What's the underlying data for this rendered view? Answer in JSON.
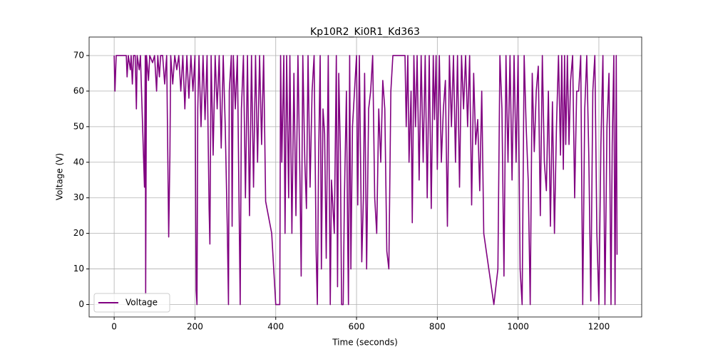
{
  "chart_data": {
    "type": "line",
    "title": "Kp10R2_Ki0R1_Kd363",
    "xlabel": "Time (seconds)",
    "ylabel": "Voltage (V)",
    "x": [
      0,
      2,
      5,
      30,
      32,
      35,
      40,
      42,
      45,
      48,
      52,
      55,
      57,
      62,
      65,
      75,
      77,
      78,
      80,
      85,
      88,
      95,
      100,
      105,
      108,
      112,
      115,
      120,
      125,
      130,
      135,
      138,
      140,
      145,
      150,
      155,
      160,
      165,
      170,
      175,
      180,
      185,
      190,
      195,
      200,
      203,
      205,
      207,
      210,
      215,
      220,
      225,
      230,
      235,
      237,
      240,
      245,
      250,
      255,
      260,
      265,
      270,
      275,
      280,
      283,
      285,
      290,
      292,
      295,
      300,
      305,
      310,
      312,
      315,
      320,
      325,
      330,
      335,
      340,
      345,
      350,
      355,
      360,
      365,
      370,
      375,
      390,
      400,
      410,
      412,
      415,
      420,
      423,
      427,
      432,
      435,
      440,
      445,
      450,
      455,
      460,
      463,
      467,
      472,
      476,
      480,
      485,
      490,
      495,
      500,
      503,
      506,
      510,
      513,
      517,
      521,
      525,
      530,
      535,
      538,
      545,
      550,
      553,
      556,
      560,
      563,
      567,
      570,
      575,
      578,
      580,
      583,
      586,
      590,
      595,
      600,
      603,
      607,
      613,
      617,
      620,
      625,
      630,
      635,
      640,
      645,
      650,
      655,
      660,
      665,
      670,
      675,
      680,
      685,
      690,
      720,
      723,
      727,
      730,
      735,
      738,
      742,
      746,
      750,
      755,
      760,
      765,
      770,
      775,
      780,
      785,
      790,
      793,
      797,
      800,
      805,
      810,
      815,
      820,
      825,
      830,
      835,
      840,
      845,
      850,
      855,
      860,
      865,
      870,
      875,
      880,
      885,
      890,
      895,
      900,
      905,
      910,
      915,
      940,
      950,
      955,
      960,
      965,
      970,
      975,
      980,
      985,
      990,
      995,
      1000,
      1005,
      1010,
      1015,
      1020,
      1025,
      1030,
      1035,
      1040,
      1045,
      1050,
      1055,
      1060,
      1065,
      1070,
      1075,
      1080,
      1085,
      1090,
      1095,
      1100,
      1105,
      1108,
      1112,
      1115,
      1118,
      1122,
      1126,
      1130,
      1135,
      1140,
      1145,
      1150,
      1155,
      1160,
      1165,
      1170,
      1175,
      1180,
      1185,
      1190,
      1195,
      1200,
      1205,
      1210,
      1215,
      1220,
      1225,
      1230,
      1233,
      1237,
      1240,
      1243,
      1245
    ],
    "series": [
      {
        "name": "Voltage",
        "color": "#800080",
        "values": [
          70,
          60,
          70,
          70,
          64,
          70,
          66,
          70,
          62,
          70,
          70,
          55,
          70,
          66,
          70,
          33,
          70,
          3,
          70,
          63,
          70,
          68,
          70,
          60,
          70,
          64,
          70,
          70,
          62,
          70,
          19,
          42,
          70,
          62,
          70,
          66,
          70,
          60,
          70,
          55,
          70,
          58,
          70,
          60,
          70,
          4,
          0,
          55,
          70,
          50,
          70,
          52,
          70,
          27,
          17,
          70,
          42,
          70,
          55,
          70,
          44,
          70,
          50,
          22,
          0,
          60,
          70,
          22,
          70,
          55,
          70,
          20,
          0,
          55,
          70,
          30,
          70,
          25,
          70,
          33,
          70,
          40,
          70,
          45,
          70,
          29,
          20,
          0,
          0,
          70,
          40,
          70,
          20,
          70,
          30,
          70,
          20,
          65,
          25,
          70,
          35,
          8,
          70,
          40,
          27,
          70,
          33,
          60,
          70,
          15,
          0,
          40,
          70,
          10,
          55,
          48,
          13,
          70,
          0,
          35,
          20,
          70,
          5,
          65,
          43,
          0,
          0,
          30,
          60,
          20,
          0,
          70,
          10,
          50,
          60,
          70,
          28,
          70,
          12,
          30,
          65,
          10,
          55,
          60,
          70,
          30,
          20,
          55,
          40,
          63,
          55,
          15,
          10,
          60,
          70,
          70,
          50,
          70,
          40,
          60,
          23,
          70,
          50,
          70,
          35,
          70,
          40,
          70,
          30,
          70,
          27,
          70,
          52,
          70,
          38,
          70,
          40,
          55,
          63,
          22,
          70,
          50,
          70,
          40,
          70,
          33,
          70,
          55,
          70,
          50,
          70,
          28,
          65,
          45,
          52,
          32,
          60,
          20,
          0,
          10,
          70,
          55,
          8,
          70,
          40,
          70,
          35,
          70,
          40,
          70,
          10,
          0,
          70,
          50,
          35,
          0,
          65,
          43,
          60,
          67,
          25,
          70,
          40,
          32,
          60,
          22,
          57,
          20,
          50,
          70,
          42,
          70,
          38,
          70,
          45,
          70,
          45,
          63,
          70,
          30,
          60,
          60,
          70,
          0,
          55,
          70,
          42,
          1,
          60,
          70,
          20,
          0,
          45,
          70,
          0,
          50,
          65,
          0,
          45,
          70,
          0,
          70,
          14
        ]
      }
    ],
    "xlim": [
      -62,
      1306
    ],
    "ylim": [
      -3.5,
      75.2
    ],
    "xticks": [
      0,
      200,
      400,
      600,
      800,
      1000,
      1200
    ],
    "yticks": [
      0,
      10,
      20,
      30,
      40,
      50,
      60,
      70
    ],
    "grid": true,
    "legend": "lower left"
  }
}
